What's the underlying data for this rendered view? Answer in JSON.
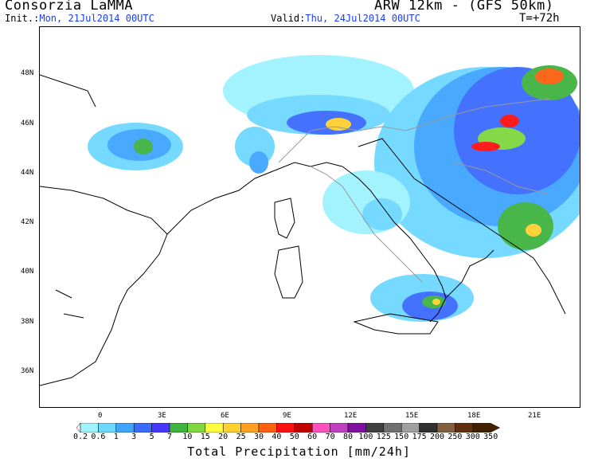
{
  "header": {
    "title_left": "Consorzia LaMMA",
    "title_right": "ARW 12km - (GFS 50km)",
    "init_label": "Init.:",
    "init_value": "Mon, 21Jul2014 00UTC",
    "valid_label": "Valid:",
    "valid_value": "Thu, 24Jul2014 00UTC",
    "forecast_step": "T=+72h"
  },
  "map": {
    "lat_labels": [
      "48N",
      "46N",
      "44N",
      "42N",
      "40N",
      "38N",
      "36N"
    ],
    "lon_labels": [
      "0",
      "3E",
      "6E",
      "9E",
      "12E",
      "15E",
      "18E",
      "21E"
    ]
  },
  "legend": {
    "title": "Total Precipitation [mm/24h]",
    "labels": [
      "0.2",
      "0.6",
      "1",
      "3",
      "5",
      "7",
      "10",
      "15",
      "20",
      "25",
      "30",
      "40",
      "50",
      "60",
      "70",
      "80",
      "100",
      "125",
      "150",
      "175",
      "200",
      "250",
      "300",
      "350"
    ],
    "colors": [
      "#ffffff",
      "#9ff3ff",
      "#6fd8ff",
      "#3fa5ff",
      "#3a6bff",
      "#4638ff",
      "#3fb33f",
      "#7fd63f",
      "#ffff40",
      "#ffd030",
      "#ffa020",
      "#ff6010",
      "#ff1010",
      "#c00000",
      "#ff50c0",
      "#c040c0",
      "#8010a0",
      "#404040",
      "#707070",
      "#a0a0a0",
      "#303030",
      "#806040",
      "#603010",
      "#402000"
    ]
  }
}
